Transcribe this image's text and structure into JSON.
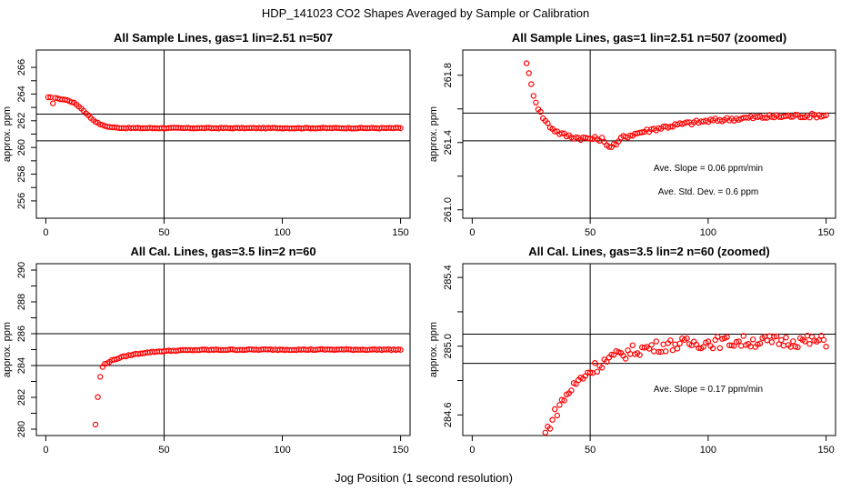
{
  "figure": {
    "title": "HDP_141023  CO2 Shapes Averaged by Sample or Calibration",
    "xlabel": "Jog Position (1 second resolution)"
  },
  "colors": {
    "points": "#ff0000",
    "lines": "#000000"
  },
  "chart_data": [
    {
      "type": "scatter",
      "title": "All Sample Lines, gas=1 lin=2.51 n=507",
      "ylabel": "approx. ppm",
      "xlim": [
        -4,
        154
      ],
      "ylim": [
        254.7,
        267.3
      ],
      "xticks": [
        "0",
        "50",
        "100",
        "150"
      ],
      "yticks": [
        "256",
        "258",
        "260",
        "262",
        "264",
        "266"
      ],
      "vline": 50,
      "hlines": [
        262.5,
        260.5
      ],
      "annotations": [],
      "profile": {
        "x0": 1,
        "x1": 150,
        "drop_start": 2,
        "drop_end": 47,
        "level_start": 263.7,
        "level_end": 261.45,
        "k": 0.32,
        "mid": 17,
        "noise": 0.03
      }
    },
    {
      "type": "scatter",
      "title": "All Sample Lines, gas=1 lin=2.51 n=507 (zoomed)",
      "ylabel": "approx. ppm",
      "xlim": [
        -4,
        154
      ],
      "ylim": [
        260.95,
        261.95
      ],
      "xticks": [
        "0",
        "50",
        "100",
        "150"
      ],
      "yticks": [
        "261.0",
        "261.4",
        "261.8"
      ],
      "vline": 50,
      "hlines": [
        261.575,
        261.41
      ],
      "annotations": [
        "Ave. Slope =  0.06  ppm/min",
        "Ave. Std. Dev. =  0.6  ppm"
      ],
      "profile": {
        "x0": 23,
        "x1": 150,
        "start_level": 261.88,
        "decay_to": 261.42,
        "decay_k": 0.18,
        "min_x": 58,
        "end_level": 261.57,
        "noise": 0.012
      }
    },
    {
      "type": "scatter",
      "title": "All Cal. Lines, gas=3.5 lin=2 n=60",
      "ylabel": "approx. ppm",
      "xlim": [
        -4,
        154
      ],
      "ylim": [
        279.6,
        290.4
      ],
      "xticks": [
        "0",
        "50",
        "100",
        "150"
      ],
      "yticks": [
        "280",
        "282",
        "284",
        "286",
        "288",
        "290"
      ],
      "vline": 50,
      "hlines": [
        286.0,
        284.0
      ],
      "annotations": [],
      "profile": {
        "x0": 21,
        "x1": 150,
        "first_values": [
          280.3,
          282.0,
          283.3,
          283.9
        ],
        "plateau": 285.0,
        "approach_k": 0.09,
        "noise": 0.03
      }
    },
    {
      "type": "scatter",
      "title": "All Cal. Lines, gas=3.5 lin=2 n=60 (zoomed)",
      "ylabel": "approx. ppm",
      "xlim": [
        -4,
        154
      ],
      "ylim": [
        284.48,
        285.48
      ],
      "xticks": [
        "0",
        "50",
        "100",
        "150"
      ],
      "yticks": [
        "284.6",
        "285.0",
        "285.4"
      ],
      "vline": 50,
      "hlines": [
        285.07,
        284.9
      ],
      "annotations": [
        "Ave. Slope =  0.17  ppm/min"
      ],
      "profile": {
        "x0": 31,
        "x1": 150,
        "start_level": 284.49,
        "plateau": 285.03,
        "approach_k": 0.06,
        "noise": 0.035
      }
    }
  ]
}
